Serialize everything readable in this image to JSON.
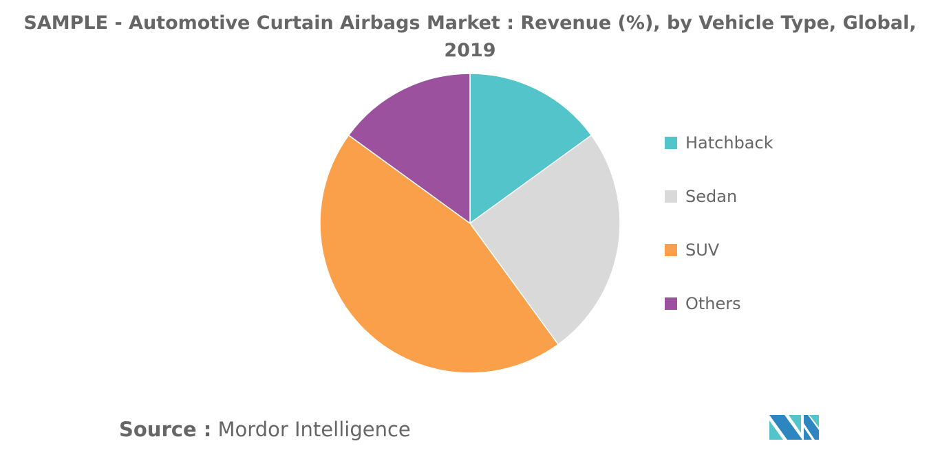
{
  "chart_data": {
    "type": "pie",
    "title": "SAMPLE - Automotive Curtain Airbags Market : Revenue (%), by Vehicle Type, Global, 2019",
    "categories": [
      "Hatchback",
      "Sedan",
      "SUV",
      "Others"
    ],
    "values": [
      15,
      25,
      45,
      15
    ],
    "colors": [
      "#52c4ca",
      "#d9d9d9",
      "#fba04a",
      "#9b519d"
    ],
    "legend_position": "right"
  },
  "source": {
    "label": "Source :",
    "value": "Mordor Intelligence"
  },
  "logo": {
    "text": "Mordor Intelligence",
    "colors": [
      "#2e86c1",
      "#52c4ca"
    ]
  }
}
